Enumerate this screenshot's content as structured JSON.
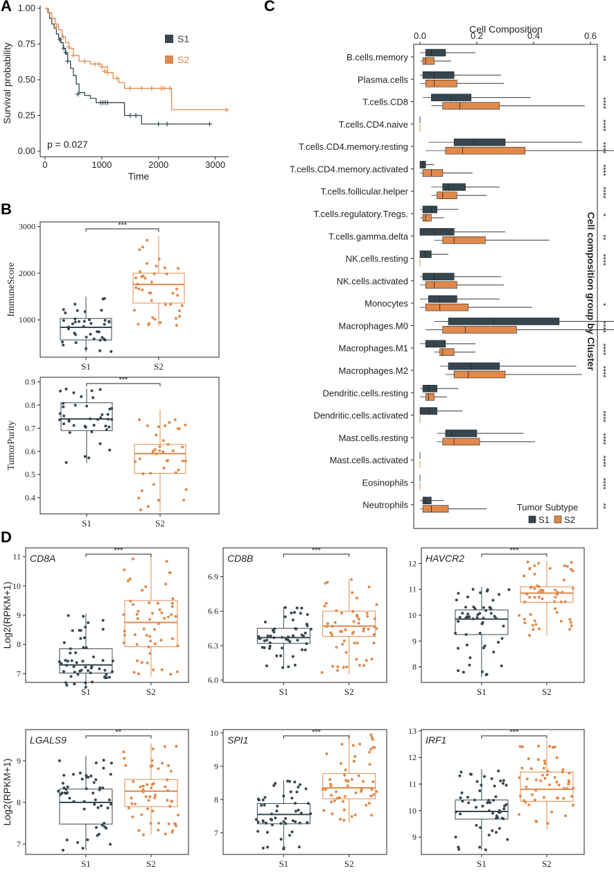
{
  "colors": {
    "s1": "#36464f",
    "s2": "#e0894a",
    "axis": "#222222"
  },
  "panel_labels": {
    "a": "A",
    "b": "B",
    "c": "C",
    "d": "D"
  },
  "chart_data": [
    {
      "panel": "A",
      "type": "line",
      "subtitle": "Kaplan-Meier survival",
      "xlabel": "Time",
      "ylabel": "Survival probability",
      "xlim": [
        -100,
        3200
      ],
      "ylim": [
        0,
        1.0
      ],
      "xticks": [
        0,
        1000,
        2000,
        3000
      ],
      "yticks": [
        "0.00",
        "0.25",
        "0.50",
        "0.75",
        "1.00"
      ],
      "legend": [
        "S1",
        "S2"
      ],
      "annotation": "p = 0.027",
      "series": [
        {
          "name": "S1",
          "steps": [
            [
              0,
              1.0
            ],
            [
              50,
              0.97
            ],
            [
              80,
              0.93
            ],
            [
              120,
              0.89
            ],
            [
              160,
              0.86
            ],
            [
              200,
              0.82
            ],
            [
              240,
              0.79
            ],
            [
              280,
              0.76
            ],
            [
              320,
              0.72
            ],
            [
              360,
              0.68
            ],
            [
              400,
              0.63
            ],
            [
              450,
              0.58
            ],
            [
              500,
              0.53
            ],
            [
              550,
              0.47
            ],
            [
              600,
              0.41
            ],
            [
              700,
              0.39
            ],
            [
              800,
              0.37
            ],
            [
              900,
              0.34
            ],
            [
              1200,
              0.34
            ],
            [
              1400,
              0.25
            ],
            [
              1700,
              0.19
            ],
            [
              2900,
              0.19
            ]
          ],
          "censored": [
            [
              260,
              0.78
            ],
            [
              330,
              0.72
            ],
            [
              370,
              0.69
            ],
            [
              400,
              0.63
            ],
            [
              580,
              0.4
            ],
            [
              980,
              0.34
            ],
            [
              1020,
              0.34
            ],
            [
              1060,
              0.34
            ],
            [
              1100,
              0.34
            ],
            [
              1500,
              0.25
            ],
            [
              1600,
              0.25
            ],
            [
              2000,
              0.19
            ],
            [
              2150,
              0.19
            ],
            [
              2900,
              0.19
            ]
          ]
        },
        {
          "name": "S2",
          "steps": [
            [
              0,
              1.0
            ],
            [
              60,
              0.97
            ],
            [
              120,
              0.93
            ],
            [
              180,
              0.89
            ],
            [
              240,
              0.85
            ],
            [
              300,
              0.8
            ],
            [
              360,
              0.76
            ],
            [
              420,
              0.72
            ],
            [
              500,
              0.67
            ],
            [
              600,
              0.63
            ],
            [
              800,
              0.61
            ],
            [
              1000,
              0.59
            ],
            [
              1100,
              0.55
            ],
            [
              1200,
              0.51
            ],
            [
              1300,
              0.48
            ],
            [
              1400,
              0.44
            ],
            [
              2200,
              0.44
            ],
            [
              2230,
              0.29
            ],
            [
              3200,
              0.29
            ]
          ],
          "censored": [
            [
              200,
              0.87
            ],
            [
              320,
              0.8
            ],
            [
              420,
              0.73
            ],
            [
              500,
              0.67
            ],
            [
              700,
              0.63
            ],
            [
              880,
              0.61
            ],
            [
              950,
              0.61
            ],
            [
              1000,
              0.59
            ],
            [
              1050,
              0.56
            ],
            [
              1100,
              0.55
            ],
            [
              1270,
              0.51
            ],
            [
              1500,
              0.44
            ],
            [
              1700,
              0.44
            ],
            [
              1880,
              0.44
            ],
            [
              2050,
              0.44
            ],
            [
              2100,
              0.44
            ],
            [
              2200,
              0.44
            ],
            [
              3200,
              0.29
            ]
          ]
        }
      ]
    },
    {
      "panel": "B-top",
      "type": "box",
      "ylabel": "ImmuneScore",
      "ylim": [
        200,
        3100
      ],
      "yticks": [
        1000,
        2000,
        3000
      ],
      "categories": [
        "S1",
        "S2"
      ],
      "significance": "***",
      "boxes": [
        {
          "name": "S1",
          "min": 310,
          "q1": 570,
          "median": 840,
          "q3": 1030,
          "max": 1500
        },
        {
          "name": "S2",
          "min": 870,
          "q1": 1360,
          "median": 1760,
          "q3": 2000,
          "max": 2800
        }
      ]
    },
    {
      "panel": "B-bottom",
      "type": "box",
      "ylabel": "TumorPurity",
      "ylim": [
        0.33,
        0.92
      ],
      "yticks": [
        0.4,
        0.5,
        0.6,
        0.7,
        0.8,
        0.9
      ],
      "categories": [
        "S1",
        "S2"
      ],
      "significance": "***",
      "boxes": [
        {
          "name": "S1",
          "min": 0.55,
          "q1": 0.69,
          "median": 0.74,
          "q3": 0.81,
          "max": 0.87
        },
        {
          "name": "S2",
          "min": 0.34,
          "q1": 0.505,
          "median": 0.59,
          "q3": 0.63,
          "max": 0.78
        }
      ]
    },
    {
      "panel": "C",
      "type": "box",
      "orientation": "horizontal",
      "title": "Cell Composition",
      "side_label": "Cell composition group by Cluster",
      "xlim": [
        -0.02,
        0.6
      ],
      "xticks": [
        "0.0",
        "0.2",
        "0.4",
        "0.6"
      ],
      "legend_title": "Tumor Subtype",
      "legend": [
        "S1",
        "S2"
      ],
      "categories": [
        "B.cells.memory",
        "Plasma.cells",
        "T.cells.CD8",
        "T.cells.CD4.naive",
        "T.cells.CD4.memory.resting",
        "T.cells.CD4.memory.activated",
        "T.cells.follicular.helper",
        "T.cells.regulatory.Tregs.",
        "T.cells.gamma.delta",
        "NK.cells.resting",
        "NK.cells.activated",
        "Monocytes",
        "Macrophages.M0",
        "Macrophages.M1",
        "Macrophages.M2",
        "Dendritic.cells.resting",
        "Dendritic.cells.activated",
        "Mast.cells.resting",
        "Mast.cells.activated",
        "Eosinophils",
        "Neutrophils"
      ],
      "significance": [
        "**",
        "",
        "****",
        "****",
        "****",
        "****",
        "****",
        "*",
        "**",
        "****",
        "",
        "*",
        "****",
        "****",
        "****",
        "",
        "****",
        "****",
        "****",
        "****",
        "**"
      ],
      "series": [
        {
          "name": "S1",
          "boxes": [
            [
              0,
              0.02,
              0.04,
              0.09
            ],
            [
              0,
              0.01,
              0.05,
              0.12
            ],
            [
              0.01,
              0.04,
              0.11,
              0.18
            ],
            [
              0,
              0,
              0,
              0
            ],
            [
              0.03,
              0.12,
              0.19,
              0.3
            ],
            [
              0,
              0,
              0.01,
              0.02
            ],
            [
              0.04,
              0.08,
              0.1,
              0.16
            ],
            [
              0,
              0.01,
              0.04,
              0.06
            ],
            [
              0,
              0,
              0.05,
              0.12
            ],
            [
              0,
              0,
              0.02,
              0.04
            ],
            [
              0,
              0.01,
              0.05,
              0.12
            ],
            [
              0,
              0.03,
              0.07,
              0.13
            ],
            [
              0.05,
              0.1,
              0.26,
              0.49
            ],
            [
              0,
              0.02,
              0.05,
              0.09
            ],
            [
              0.07,
              0.1,
              0.18,
              0.28
            ],
            [
              0,
              0.01,
              0.03,
              0.06
            ],
            [
              0,
              0,
              0.03,
              0.06
            ],
            [
              0.06,
              0.09,
              0.11,
              0.2
            ],
            [
              0,
              0,
              0,
              0
            ],
            [
              0,
              0,
              0,
              0
            ],
            [
              0,
              0.01,
              0.02,
              0.04
            ]
          ]
        },
        {
          "name": "S2",
          "boxes": [
            [
              0,
              0.01,
              0.02,
              0.05
            ],
            [
              0,
              0.02,
              0.05,
              0.13
            ],
            [
              0.04,
              0.08,
              0.14,
              0.28
            ],
            [
              0,
              0,
              0,
              0
            ],
            [
              0.02,
              0.09,
              0.15,
              0.37
            ],
            [
              0,
              0.01,
              0.04,
              0.08
            ],
            [
              0.04,
              0.06,
              0.08,
              0.13
            ],
            [
              0,
              0.01,
              0.02,
              0.04
            ],
            [
              0.05,
              0.08,
              0.12,
              0.23
            ],
            [
              0,
              0,
              0,
              0
            ],
            [
              0,
              0.02,
              0.05,
              0.13
            ],
            [
              0,
              0.02,
              0.07,
              0.17
            ],
            [
              0.02,
              0.08,
              0.16,
              0.34
            ],
            [
              0.05,
              0.07,
              0.08,
              0.12
            ],
            [
              0.09,
              0.12,
              0.17,
              0.3
            ],
            [
              0,
              0.02,
              0.03,
              0.05
            ],
            [
              0,
              0,
              0,
              0
            ],
            [
              0.06,
              0.08,
              0.12,
              0.21
            ],
            [
              0,
              0,
              0,
              0
            ],
            [
              0,
              0,
              0,
              0
            ],
            [
              0,
              0.01,
              0.04,
              0.1
            ]
          ]
        }
      ]
    },
    {
      "panel": "D",
      "type": "box",
      "ylabel": "Log2(RPKM+1)",
      "categories": [
        "S1",
        "S2"
      ],
      "genes": [
        {
          "gene": "CD8A",
          "significance": "***",
          "ylim": [
            6.7,
            11.3
          ],
          "yticks": [
            7,
            8,
            9,
            10,
            11
          ],
          "ytick_labels": [
            "7",
            "8",
            "9",
            "10",
            "11"
          ],
          "s1": [
            6.5,
            7.02,
            7.3,
            7.85,
            9.05
          ],
          "s2": [
            6.9,
            7.92,
            8.75,
            9.5,
            11.1
          ]
        },
        {
          "gene": "CD8B",
          "significance": "***",
          "ylim": [
            5.98,
            7.15
          ],
          "yticks": [
            6.0,
            6.3,
            6.6,
            6.9
          ],
          "ytick_labels": [
            "6.0",
            "6.3",
            "6.6",
            "6.9"
          ],
          "s1": [
            6.1,
            6.32,
            6.37,
            6.45,
            6.64
          ],
          "s2": [
            6.05,
            6.38,
            6.47,
            6.6,
            6.88
          ]
        },
        {
          "gene": "HAVCR2",
          "significance": "***",
          "ylim": [
            7.4,
            12.6
          ],
          "yticks": [
            8,
            9,
            10,
            11,
            12
          ],
          "ytick_labels": [
            "8",
            "9",
            "10",
            "11",
            "12"
          ],
          "s1": [
            7.6,
            9.25,
            9.85,
            10.2,
            11.1
          ],
          "s2": [
            9.2,
            10.5,
            10.85,
            11.1,
            12.1
          ]
        },
        {
          "gene": "LGALS9",
          "significance": "**",
          "ylim": [
            6.75,
            9.75
          ],
          "yticks": [
            7,
            8,
            9
          ],
          "ytick_labels": [
            "7",
            "8",
            "9"
          ],
          "s1": [
            6.85,
            7.48,
            8.0,
            8.32,
            9.12
          ],
          "s2": [
            7.22,
            7.9,
            8.27,
            8.55,
            9.42
          ]
        },
        {
          "gene": "SPI1",
          "significance": "***",
          "ylim": [
            6.35,
            10.1
          ],
          "yticks": [
            7,
            8,
            9,
            10
          ],
          "ytick_labels": [
            "7",
            "8",
            "9",
            "10"
          ],
          "s1": [
            6.5,
            7.27,
            7.55,
            7.88,
            8.58
          ],
          "s2": [
            7.3,
            8.02,
            8.35,
            8.78,
            9.95
          ]
        },
        {
          "gene": "IRF1",
          "significance": "***",
          "ylim": [
            8.35,
            13.05
          ],
          "yticks": [
            9,
            10,
            11,
            12,
            13
          ],
          "ytick_labels": [
            "9",
            "10",
            "11",
            "12",
            "13"
          ],
          "s1": [
            8.5,
            9.68,
            9.97,
            10.4,
            11.55
          ],
          "s2": [
            9.3,
            10.35,
            10.8,
            11.45,
            12.65
          ]
        }
      ]
    }
  ]
}
